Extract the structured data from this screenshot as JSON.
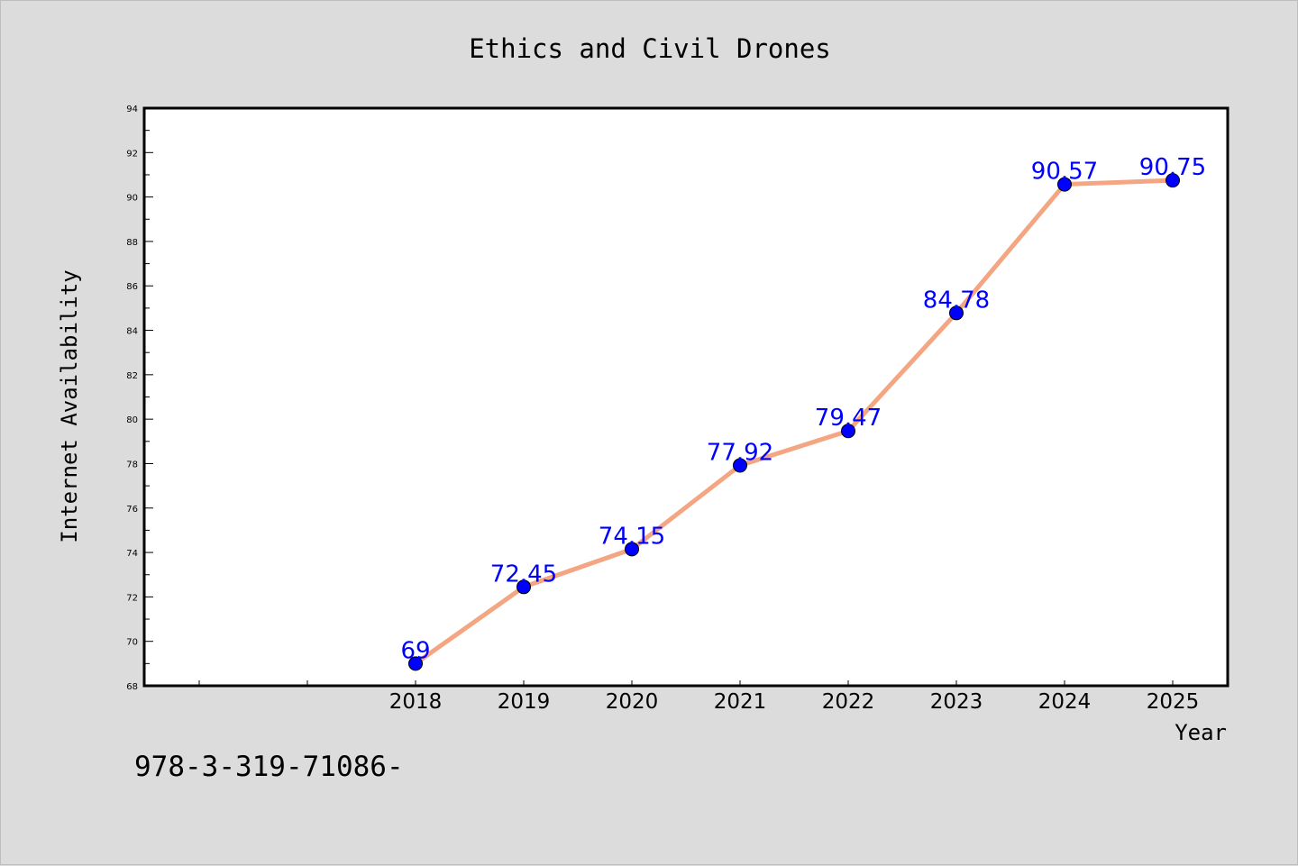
{
  "chart_data": {
    "type": "line",
    "title": "Ethics and Civil Drones",
    "xlabel": "Year",
    "ylabel": "Internet Availability",
    "x": [
      "2018",
      "2019",
      "2020",
      "2021",
      "2022",
      "2023",
      "2024",
      "2025"
    ],
    "series": [
      {
        "values": [
          69,
          72.45,
          74.15,
          77.92,
          79.47,
          84.78,
          90.57,
          90.75
        ]
      }
    ],
    "data_labels": [
      "69",
      "72.45",
      "74.15",
      "77.92",
      "79.47",
      "84.78",
      "90.57",
      "90.75"
    ],
    "ylim": [
      68,
      94
    ],
    "yticks": [
      "68",
      "70",
      "72",
      "74",
      "76",
      "78",
      "80",
      "82",
      "84",
      "86",
      "88",
      "90",
      "92",
      "94"
    ],
    "grid": false,
    "colors": {
      "line": "#f4a582",
      "marker": "#0000ff",
      "label": "#0000ff",
      "background": "#dcdcdc",
      "plot_background": "#ffffff"
    }
  },
  "footer_text": "978-3-319-71086-"
}
